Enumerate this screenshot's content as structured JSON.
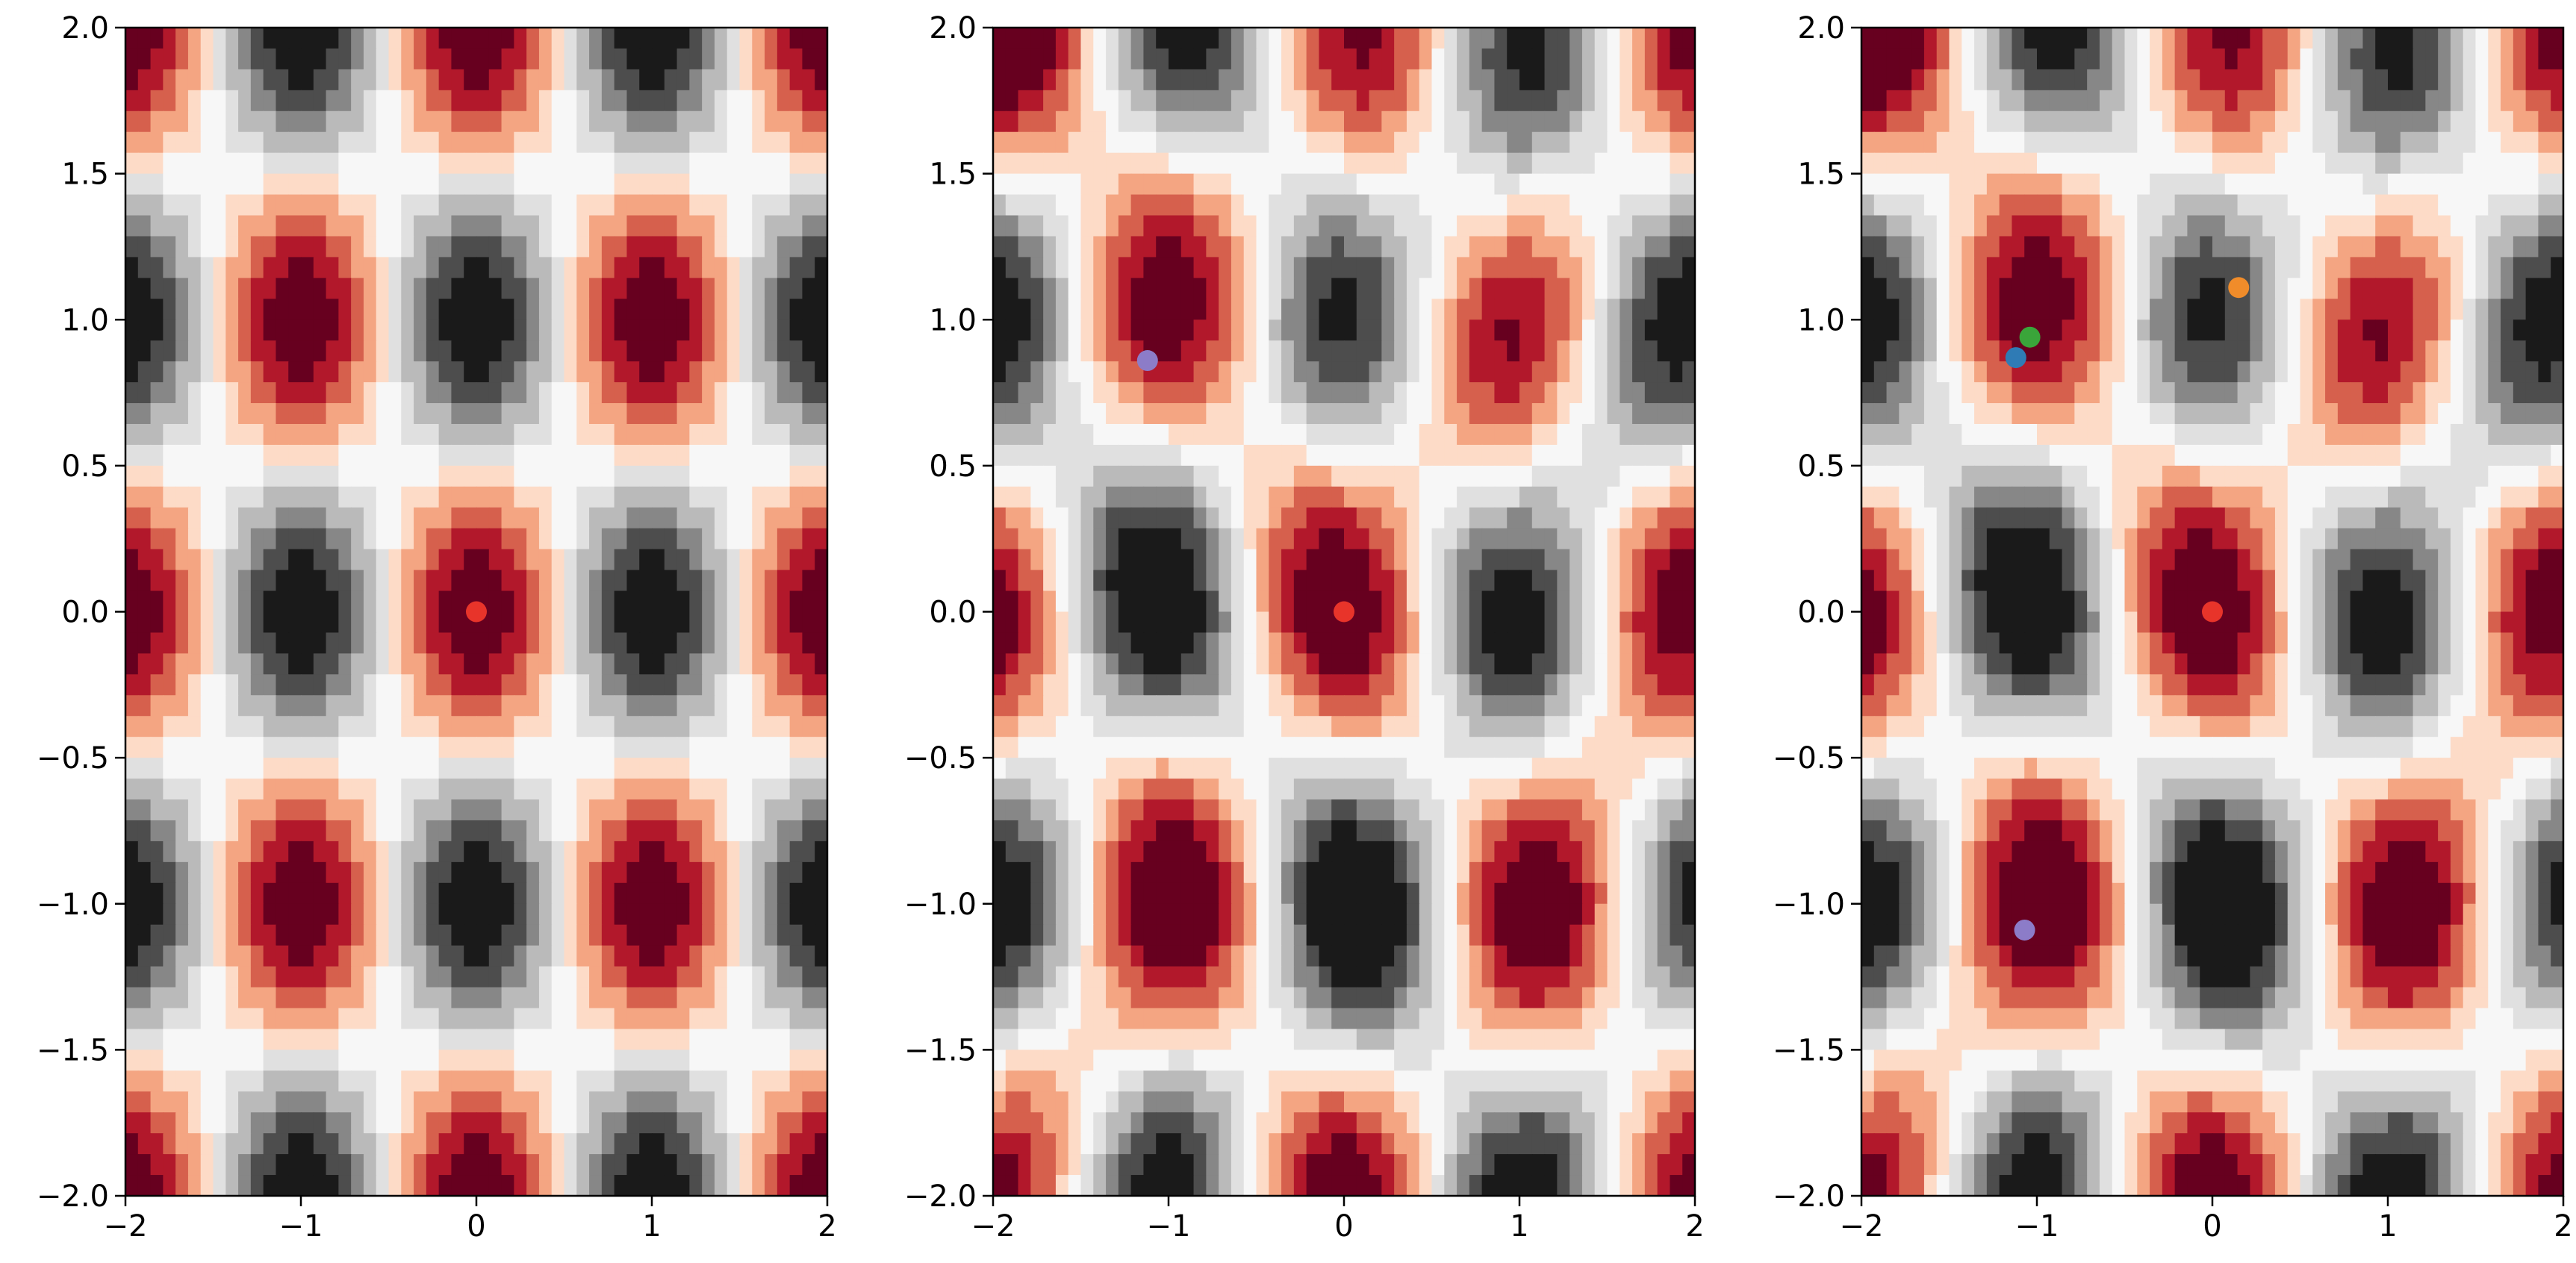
{
  "chart_data": [
    {
      "type": "heatmap",
      "panel": "left",
      "field": "symmetric periodic surface (filled contours)",
      "colormap": [
        "#1a1a1a",
        "#4d4d4d",
        "#878787",
        "#bababa",
        "#e0e0e0",
        "#f7f7f7",
        "#fddbc7",
        "#f4a582",
        "#d6604d",
        "#b2182b",
        "#67001f"
      ],
      "xlim": [
        -2,
        2
      ],
      "ylim": [
        -2,
        2
      ],
      "xticks": [
        -2,
        -1,
        0,
        1,
        2
      ],
      "yticks": [
        -2.0,
        -1.5,
        -1.0,
        -0.5,
        0.0,
        0.5,
        1.0,
        1.5,
        2.0
      ],
      "xtick_labels": [
        "−2",
        "−1",
        "0",
        "1",
        "2"
      ],
      "ytick_labels": [
        "−2.0",
        "−1.5",
        "−1.0",
        "−0.5",
        "0.0",
        "0.5",
        "1.0",
        "1.5",
        "2.0"
      ],
      "grid": false,
      "points": [
        {
          "x": 0.0,
          "y": 0.0,
          "color": "#e8342a"
        }
      ]
    },
    {
      "type": "heatmap",
      "panel": "middle",
      "field": "perturbed periodic surface (filled contours)",
      "colormap": [
        "#1a1a1a",
        "#4d4d4d",
        "#878787",
        "#bababa",
        "#e0e0e0",
        "#f7f7f7",
        "#fddbc7",
        "#f4a582",
        "#d6604d",
        "#b2182b",
        "#67001f"
      ],
      "xlim": [
        -2,
        2
      ],
      "ylim": [
        -2,
        2
      ],
      "xticks": [
        -2,
        -1,
        0,
        1,
        2
      ],
      "yticks": [
        -2.0,
        -1.5,
        -1.0,
        -0.5,
        0.0,
        0.5,
        1.0,
        1.5,
        2.0
      ],
      "xtick_labels": [
        "−2",
        "−1",
        "0",
        "1",
        "2"
      ],
      "ytick_labels": [
        "−2.0",
        "−1.5",
        "−1.0",
        "−0.5",
        "0.0",
        "0.5",
        "1.0",
        "1.5",
        "2.0"
      ],
      "grid": false,
      "points": [
        {
          "x": 0.0,
          "y": 0.0,
          "color": "#e8342a"
        },
        {
          "x": -1.12,
          "y": 0.86,
          "color": "#8c7cc8"
        }
      ]
    },
    {
      "type": "heatmap",
      "panel": "right",
      "field": "perturbed periodic surface (filled contours)",
      "colormap": [
        "#1a1a1a",
        "#4d4d4d",
        "#878787",
        "#bababa",
        "#e0e0e0",
        "#f7f7f7",
        "#fddbc7",
        "#f4a582",
        "#d6604d",
        "#b2182b",
        "#67001f"
      ],
      "xlim": [
        -2,
        2
      ],
      "ylim": [
        -2,
        2
      ],
      "xticks": [
        -2,
        -1,
        0,
        1,
        2
      ],
      "yticks": [
        -2.0,
        -1.5,
        -1.0,
        -0.5,
        0.0,
        0.5,
        1.0,
        1.5,
        2.0
      ],
      "xtick_labels": [
        "−2",
        "−1",
        "0",
        "1",
        "2"
      ],
      "ytick_labels": [
        "−2.0",
        "−1.5",
        "−1.0",
        "−0.5",
        "0.0",
        "0.5",
        "1.0",
        "1.5",
        "2.0"
      ],
      "grid": false,
      "points": [
        {
          "x": 0.0,
          "y": 0.0,
          "color": "#e8342a"
        },
        {
          "x": -1.12,
          "y": 0.87,
          "color": "#2f7bb5"
        },
        {
          "x": -1.04,
          "y": 0.94,
          "color": "#3aa53a"
        },
        {
          "x": 0.15,
          "y": 1.11,
          "color": "#f08c2a"
        },
        {
          "x": -1.07,
          "y": -1.09,
          "color": "#8c7cc8"
        }
      ]
    }
  ]
}
